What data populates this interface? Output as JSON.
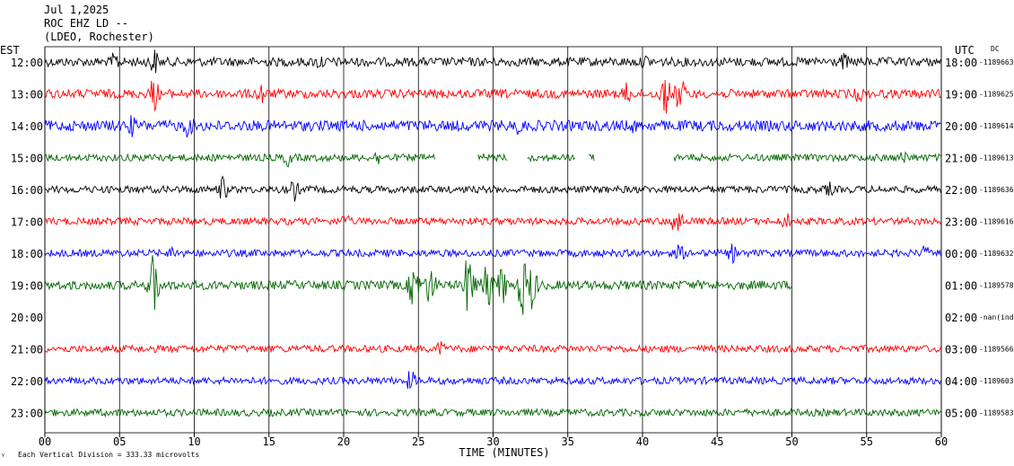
{
  "header": {
    "date": "Jul 1,2025",
    "station": "ROC EHZ LD --",
    "network": "(LDEO, Rochester)"
  },
  "left_axis_label": "EST",
  "right_axis_label": "UTC",
  "dc_label": "DC",
  "footer_note": "Each Vertical Division = 333.33 microvolts",
  "chart_data": {
    "type": "line",
    "title": "Jul 1,2025 ROC EHZ LD -- (LDEO, Rochester)",
    "xlabel": "TIME (MINUTES)",
    "ylabel": "",
    "xlim": [
      0,
      60
    ],
    "x_ticks": [
      "00",
      "05",
      "10",
      "15",
      "20",
      "25",
      "30",
      "35",
      "40",
      "45",
      "50",
      "55",
      "60"
    ],
    "grid": true,
    "rows": [
      {
        "est": "12:00",
        "utc": "18:00",
        "dc": "-1189663",
        "color": "#000000",
        "amplitude": 5,
        "segments": [
          [
            0,
            60
          ]
        ],
        "events": [
          [
            4.7,
            14
          ],
          [
            7.3,
            18
          ],
          [
            18.4,
            12
          ],
          [
            40.2,
            10
          ],
          [
            53.5,
            12
          ]
        ]
      },
      {
        "est": "13:00",
        "utc": "19:00",
        "dc": "-1189625",
        "color": "#ff0000",
        "amplitude": 5,
        "segments": [
          [
            0,
            60
          ]
        ],
        "events": [
          [
            7.3,
            22
          ],
          [
            14.5,
            16
          ],
          [
            39.0,
            16
          ],
          [
            41.5,
            26
          ],
          [
            42.5,
            24
          ],
          [
            54.5,
            12
          ]
        ]
      },
      {
        "est": "14:00",
        "utc": "20:00",
        "dc": "-1189614",
        "color": "#0000ff",
        "amplitude": 6,
        "segments": [
          [
            0,
            60
          ]
        ],
        "events": [
          [
            5.8,
            14
          ],
          [
            9.6,
            16
          ],
          [
            31.8,
            14
          ],
          [
            39.4,
            10
          ]
        ]
      },
      {
        "est": "15:00",
        "utc": "21:00",
        "dc": "-1189613",
        "color": "#006600",
        "amplitude": 4,
        "segments": [
          [
            0,
            26.1
          ],
          [
            29.0,
            31.0
          ],
          [
            32.3,
            35.5
          ],
          [
            36.4,
            36.8
          ],
          [
            42.1,
            60
          ]
        ],
        "events": [
          [
            7.5,
            10
          ],
          [
            16.3,
            12
          ],
          [
            22.3,
            10
          ],
          [
            57.5,
            10
          ]
        ]
      },
      {
        "est": "16:00",
        "utc": "22:00",
        "dc": "-1189636",
        "color": "#000000",
        "amplitude": 4,
        "segments": [
          [
            0,
            60
          ]
        ],
        "events": [
          [
            11.9,
            16
          ],
          [
            16.7,
            14
          ],
          [
            52.5,
            10
          ]
        ]
      },
      {
        "est": "17:00",
        "utc": "23:00",
        "dc": "-1189616",
        "color": "#ff0000",
        "amplitude": 4,
        "segments": [
          [
            0,
            60
          ]
        ],
        "events": [
          [
            20.1,
            10
          ],
          [
            42.3,
            22
          ],
          [
            49.6,
            12
          ]
        ]
      },
      {
        "est": "18:00",
        "utc": "00:00",
        "dc": "-1189632",
        "color": "#0000ff",
        "amplitude": 4,
        "segments": [
          [
            0,
            60
          ]
        ],
        "events": [
          [
            8.6,
            10
          ],
          [
            42.5,
            12
          ],
          [
            46.0,
            12
          ],
          [
            58.9,
            10
          ]
        ]
      },
      {
        "est": "19:00",
        "utc": "01:00",
        "dc": "-1189578",
        "color": "#006600",
        "amplitude": 5,
        "segments": [
          [
            0,
            50
          ]
        ],
        "events": [
          [
            7.3,
            40
          ],
          [
            24.7,
            30
          ],
          [
            25.8,
            26
          ],
          [
            28.4,
            44
          ],
          [
            29.6,
            34
          ],
          [
            30.6,
            26
          ],
          [
            32.0,
            36
          ],
          [
            32.6,
            30
          ]
        ]
      },
      {
        "est": "20:00",
        "utc": "02:00",
        "dc": "-nan(ind",
        "color": "#006600",
        "amplitude": 0,
        "segments": [],
        "events": []
      },
      {
        "est": "21:00",
        "utc": "03:00",
        "dc": "-1189566",
        "color": "#ff0000",
        "amplitude": 4,
        "segments": [
          [
            0,
            60
          ]
        ],
        "events": [
          [
            26.5,
            10
          ]
        ]
      },
      {
        "est": "22:00",
        "utc": "04:00",
        "dc": "-1189603",
        "color": "#0000ff",
        "amplitude": 4,
        "segments": [
          [
            0,
            60
          ]
        ],
        "events": [
          [
            24.5,
            14
          ],
          [
            59.8,
            8
          ]
        ]
      },
      {
        "est": "23:00",
        "utc": "05:00",
        "dc": "-1189583",
        "color": "#006600",
        "amplitude": 4,
        "segments": [
          [
            0,
            60
          ]
        ],
        "events": []
      }
    ]
  }
}
